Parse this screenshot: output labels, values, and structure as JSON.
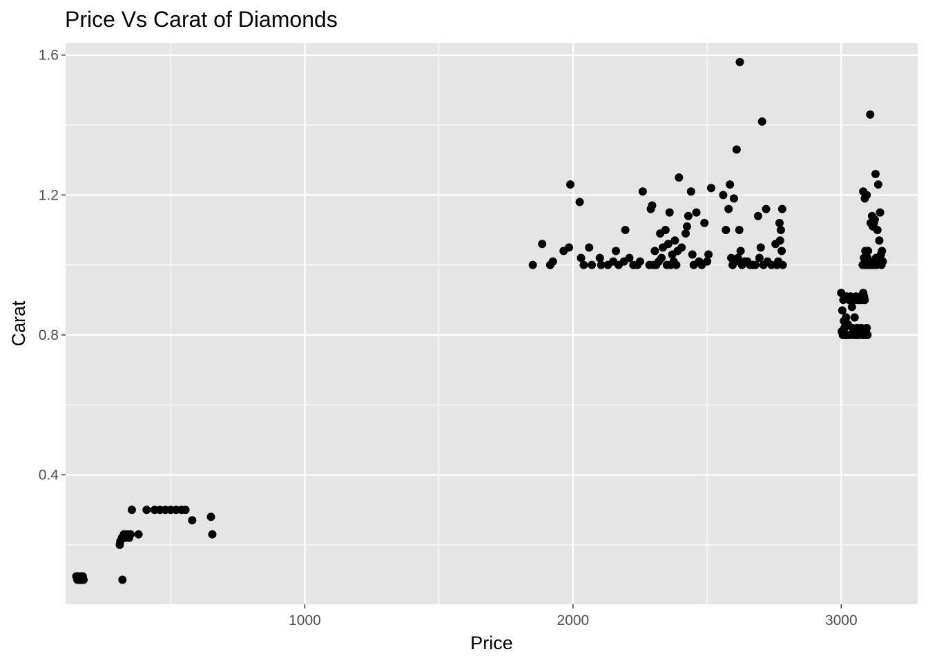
{
  "chart_data": {
    "type": "scatter",
    "title": "Price Vs Carat of Diamonds",
    "xlabel": "Price",
    "ylabel": "Carat",
    "xlim": [
      108,
      3285
    ],
    "ylim": [
      0.03,
      1.635
    ],
    "x_ticks": [
      1000,
      2000,
      3000
    ],
    "x_tick_labels": [
      "1000",
      "2000",
      "3000"
    ],
    "y_ticks": [
      0.4,
      0.8,
      1.2,
      1.6
    ],
    "y_tick_labels": [
      "0.4",
      "0.8",
      "1.2",
      "1.6"
    ],
    "grid": true,
    "panel_background": "#e5e5e5",
    "grid_color": "#ffffff",
    "point_color": "#000000",
    "legend": "none",
    "series": [
      {
        "points": [
          [
            148,
            0.11
          ],
          [
            152,
            0.1
          ],
          [
            155,
            0.11
          ],
          [
            158,
            0.1
          ],
          [
            162,
            0.1
          ],
          [
            165,
            0.11
          ],
          [
            170,
            0.1
          ],
          [
            172,
            0.11
          ],
          [
            175,
            0.1
          ],
          [
            310,
            0.2
          ],
          [
            312,
            0.21
          ],
          [
            318,
            0.22
          ],
          [
            320,
            0.1
          ],
          [
            325,
            0.23
          ],
          [
            330,
            0.22
          ],
          [
            335,
            0.23
          ],
          [
            340,
            0.23
          ],
          [
            345,
            0.22
          ],
          [
            350,
            0.23
          ],
          [
            355,
            0.3
          ],
          [
            380,
            0.23
          ],
          [
            410,
            0.3
          ],
          [
            440,
            0.3
          ],
          [
            460,
            0.3
          ],
          [
            480,
            0.3
          ],
          [
            500,
            0.3
          ],
          [
            520,
            0.3
          ],
          [
            540,
            0.3
          ],
          [
            555,
            0.3
          ],
          [
            580,
            0.27
          ],
          [
            650,
            0.28
          ],
          [
            655,
            0.23
          ],
          [
            1850,
            1.0
          ],
          [
            1885,
            1.06
          ],
          [
            1915,
            1.0
          ],
          [
            1925,
            1.01
          ],
          [
            1965,
            1.04
          ],
          [
            1985,
            1.05
          ],
          [
            1990,
            1.23
          ],
          [
            2025,
            1.18
          ],
          [
            2030,
            1.02
          ],
          [
            2040,
            1.0
          ],
          [
            2060,
            1.05
          ],
          [
            2070,
            1.0
          ],
          [
            2100,
            1.02
          ],
          [
            2105,
            1.0
          ],
          [
            2130,
            1.0
          ],
          [
            2150,
            1.01
          ],
          [
            2160,
            1.04
          ],
          [
            2170,
            1.0
          ],
          [
            2190,
            1.01
          ],
          [
            2195,
            1.1
          ],
          [
            2210,
            1.02
          ],
          [
            2225,
            1.0
          ],
          [
            2240,
            1.0
          ],
          [
            2250,
            1.01
          ],
          [
            2260,
            1.21
          ],
          [
            2285,
            1.0
          ],
          [
            2290,
            1.16
          ],
          [
            2295,
            1.17
          ],
          [
            2300,
            1.0
          ],
          [
            2305,
            1.04
          ],
          [
            2310,
            1.0
          ],
          [
            2320,
            1.01
          ],
          [
            2325,
            1.09
          ],
          [
            2330,
            1.02
          ],
          [
            2335,
            1.05
          ],
          [
            2345,
            1.1
          ],
          [
            2350,
            1.0
          ],
          [
            2355,
            1.06
          ],
          [
            2360,
            1.15
          ],
          [
            2365,
            1.0
          ],
          [
            2370,
            1.03
          ],
          [
            2375,
            1.01
          ],
          [
            2380,
            1.07
          ],
          [
            2385,
            1.0
          ],
          [
            2390,
            1.04
          ],
          [
            2395,
            1.25
          ],
          [
            2405,
            1.05
          ],
          [
            2420,
            1.09
          ],
          [
            2425,
            1.11
          ],
          [
            2430,
            1.14
          ],
          [
            2440,
            1.21
          ],
          [
            2445,
            1.03
          ],
          [
            2450,
            1.0
          ],
          [
            2460,
            1.15
          ],
          [
            2470,
            1.01
          ],
          [
            2480,
            1.0
          ],
          [
            2490,
            1.12
          ],
          [
            2500,
            1.01
          ],
          [
            2505,
            1.03
          ],
          [
            2515,
            1.22
          ],
          [
            2560,
            1.2
          ],
          [
            2570,
            1.1
          ],
          [
            2580,
            1.16
          ],
          [
            2585,
            1.23
          ],
          [
            2590,
            1.02
          ],
          [
            2595,
            1.0
          ],
          [
            2600,
            1.19
          ],
          [
            2605,
            1.01
          ],
          [
            2610,
            1.33
          ],
          [
            2615,
            1.02
          ],
          [
            2620,
            1.1
          ],
          [
            2622,
            1.58
          ],
          [
            2625,
            1.04
          ],
          [
            2630,
            1.0
          ],
          [
            2640,
            1.01
          ],
          [
            2650,
            1.01
          ],
          [
            2660,
            1.0
          ],
          [
            2670,
            1.0
          ],
          [
            2680,
            1.0
          ],
          [
            2690,
            1.14
          ],
          [
            2695,
            1.02
          ],
          [
            2700,
            1.05
          ],
          [
            2705,
            1.41
          ],
          [
            2710,
            1.0
          ],
          [
            2720,
            1.16
          ],
          [
            2725,
            1.01
          ],
          [
            2740,
            1.0
          ],
          [
            2755,
            1.06
          ],
          [
            2760,
            1.0
          ],
          [
            2765,
            1.01
          ],
          [
            2770,
            1.12
          ],
          [
            2772,
            1.07
          ],
          [
            2775,
            1.1
          ],
          [
            2778,
            1.04
          ],
          [
            2780,
            1.16
          ],
          [
            2782,
            1.0
          ],
          [
            3000,
            0.92
          ],
          [
            3002,
            0.81
          ],
          [
            3004,
            0.87
          ],
          [
            3006,
            0.8
          ],
          [
            3008,
            0.9
          ],
          [
            3010,
            0.84
          ],
          [
            3012,
            0.82
          ],
          [
            3015,
            0.8
          ],
          [
            3018,
            0.85
          ],
          [
            3020,
            0.91
          ],
          [
            3022,
            0.8
          ],
          [
            3025,
            0.83
          ],
          [
            3030,
            0.9
          ],
          [
            3032,
            0.8
          ],
          [
            3035,
            0.91
          ],
          [
            3040,
            0.88
          ],
          [
            3042,
            0.82
          ],
          [
            3045,
            0.8
          ],
          [
            3048,
            0.9
          ],
          [
            3050,
            0.85
          ],
          [
            3052,
            0.8
          ],
          [
            3055,
            0.91
          ],
          [
            3058,
            0.8
          ],
          [
            3060,
            0.82
          ],
          [
            3062,
            0.9
          ],
          [
            3065,
            0.8
          ],
          [
            3068,
            0.9
          ],
          [
            3070,
            0.81
          ],
          [
            3072,
            0.91
          ],
          [
            3075,
            0.82
          ],
          [
            3078,
            0.9
          ],
          [
            3080,
            0.8
          ],
          [
            3082,
            0.92
          ],
          [
            3085,
            0.91
          ],
          [
            3088,
            0.9
          ],
          [
            3090,
            0.8
          ],
          [
            3092,
            0.81
          ],
          [
            3095,
            0.82
          ],
          [
            3098,
            0.8
          ],
          [
            3080,
            1.0
          ],
          [
            3082,
            1.21
          ],
          [
            3085,
            1.02
          ],
          [
            3088,
            1.19
          ],
          [
            3090,
            1.04
          ],
          [
            3092,
            1.0
          ],
          [
            3095,
            1.2
          ],
          [
            3098,
            1.02
          ],
          [
            3100,
            1.04
          ],
          [
            3102,
            1.0
          ],
          [
            3105,
            1.01
          ],
          [
            3108,
            1.43
          ],
          [
            3110,
            1.12
          ],
          [
            3112,
            1.0
          ],
          [
            3115,
            1.14
          ],
          [
            3118,
            1.11
          ],
          [
            3120,
            1.0
          ],
          [
            3122,
            1.12
          ],
          [
            3125,
            1.13
          ],
          [
            3128,
            1.26
          ],
          [
            3130,
            1.02
          ],
          [
            3132,
            1.0
          ],
          [
            3135,
            1.1
          ],
          [
            3138,
            1.23
          ],
          [
            3140,
            1.01
          ],
          [
            3142,
            1.07
          ],
          [
            3145,
            1.15
          ],
          [
            3148,
            1.03
          ],
          [
            3150,
            1.0
          ],
          [
            3152,
            1.04
          ],
          [
            3155,
            1.01
          ]
        ]
      }
    ]
  }
}
